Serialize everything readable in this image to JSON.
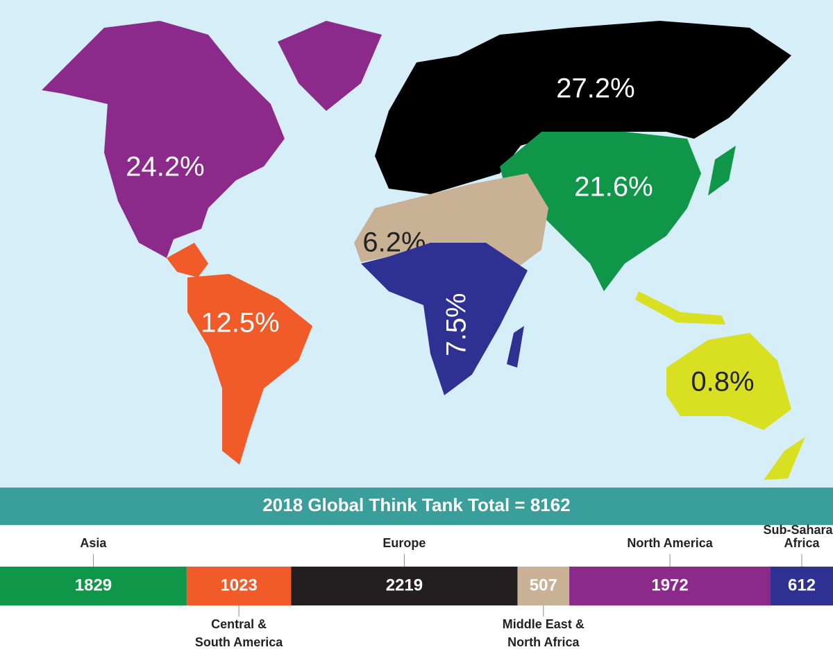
{
  "title": "2018 Global Think Tank Total = 8162",
  "map": {
    "regions": [
      {
        "label": "24.2%",
        "color": "#8b2a8b"
      },
      {
        "label": "12.5%",
        "color": "#f15a29"
      },
      {
        "label": "27.2%",
        "color": "#000000"
      },
      {
        "label": "21.6%",
        "color": "#109648"
      },
      {
        "label": "6.2%",
        "color": "#c9b196"
      },
      {
        "label": "7.5%",
        "color": "#2e3192"
      },
      {
        "label": "0.8%",
        "color": "#d9e021"
      }
    ]
  },
  "bar": {
    "segments": [
      {
        "name": [
          "Asia"
        ],
        "value": 1829,
        "color": "#109648"
      },
      {
        "name": [
          "Central &",
          "South America"
        ],
        "value": 1023,
        "color": "#f15a29"
      },
      {
        "name": [
          "Europe"
        ],
        "value": 2219,
        "color": "#231f20"
      },
      {
        "name": [
          "Middle East &",
          "North Africa"
        ],
        "value": 507,
        "color": "#c9b196"
      },
      {
        "name": [
          "North America"
        ],
        "value": 1972,
        "color": "#8b2a8b"
      },
      {
        "name": [
          "Sub-Saharan",
          "Africa"
        ],
        "value": 612,
        "color": "#2e3192"
      }
    ]
  }
}
